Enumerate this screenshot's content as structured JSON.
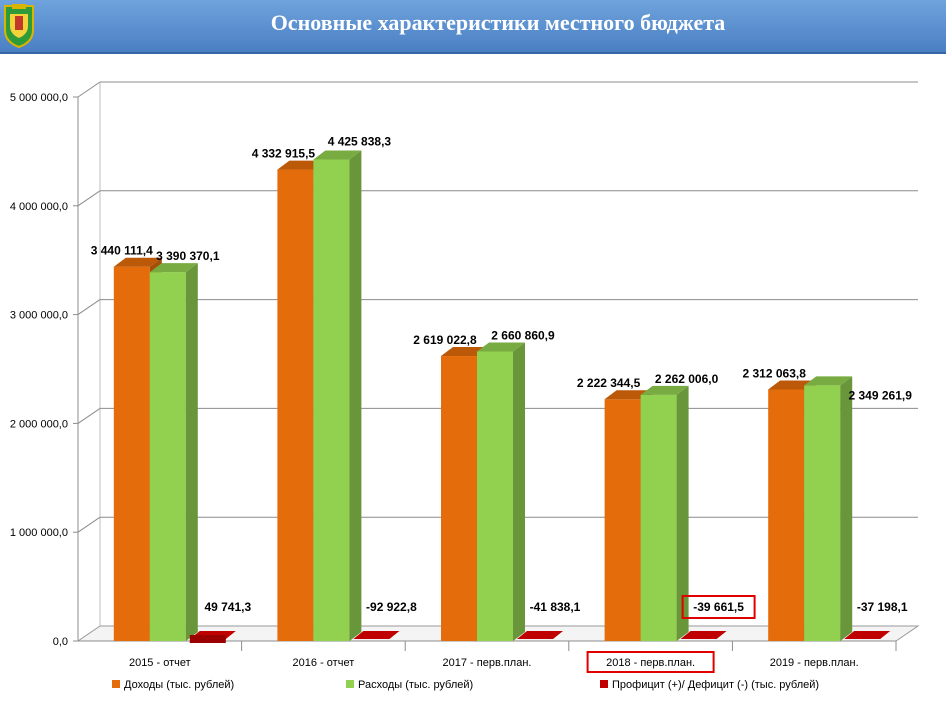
{
  "header": {
    "title": "Основные характеристики местного бюджета",
    "emblem_icon": "coat-of-arms-icon"
  },
  "colors": {
    "title_bar": "#5a8fd0",
    "income": "#e46c0a",
    "expense": "#92d050",
    "balance": "#c00000",
    "highlight_box": "#e00000"
  },
  "chart_data": {
    "type": "bar",
    "categories": [
      "2015 - отчет",
      "2016 - отчет",
      "2017 - перв.план.",
      "2018 - перв.план.",
      "2019 - перв.план."
    ],
    "series": [
      {
        "name": "Доходы (тыс. рублей)",
        "values": [
          3440111.4,
          4332915.5,
          2619022.8,
          2222344.5,
          2312063.8
        ],
        "labels": [
          "3 440 111,4",
          "4 332 915,5",
          "2 619 022,8",
          "2 222 344,5",
          "2 312 063,8"
        ]
      },
      {
        "name": "Расходы (тыс. рублей)",
        "values": [
          3390370.1,
          4425838.3,
          2660860.9,
          2262006.0,
          2349261.9
        ],
        "labels": [
          "3 390 370,1",
          "4 425 838,3",
          "2 660 860,9",
          "2 262 006,0",
          "2 349 261,9"
        ]
      },
      {
        "name": "Профицит (+)/ Дефицит (-) (тыс. рублей)",
        "values": [
          49741.3,
          -92922.8,
          -41838.1,
          -39661.5,
          -37198.1
        ],
        "labels": [
          "49 741,3",
          "-92 922,8",
          "-41 838,1",
          "-39 661,5",
          "-37 198,1"
        ]
      }
    ],
    "y_ticks": [
      "0,0",
      "1 000 000,0",
      "2 000 000,0",
      "3 000 000,0",
      "4 000 000,0",
      "5 000 000,0"
    ],
    "ylim": [
      0,
      5000000
    ],
    "highlighted_category": "2018 - перв.план.",
    "highlighted_label": "-39 661,5",
    "grid": true,
    "legend_position": "bottom"
  }
}
